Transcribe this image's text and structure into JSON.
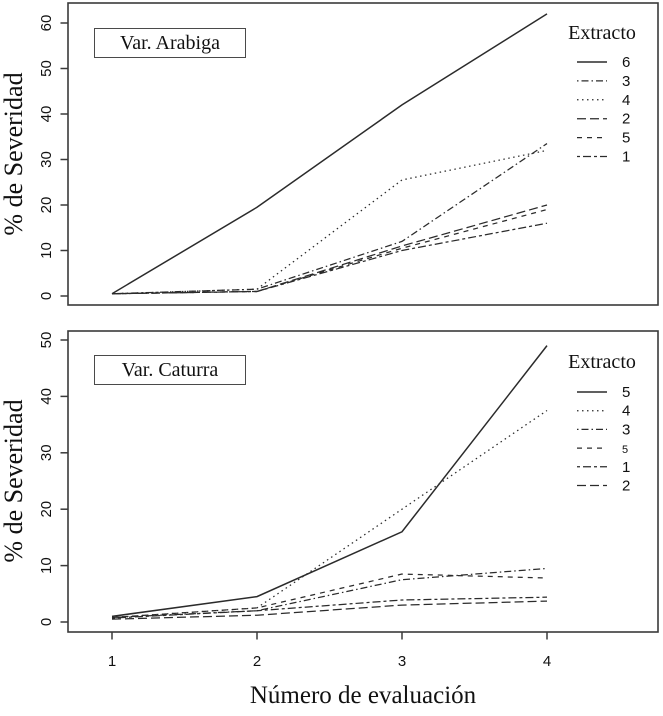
{
  "axes": {
    "x_label": "Número de evaluación",
    "y_label": "% de Severidad",
    "x_tick_labels": [
      "1",
      "2",
      "3",
      "4"
    ]
  },
  "colors": {
    "line": "#2b2b2b",
    "frame": "#3a3a3a",
    "text": "#111111"
  },
  "chart_data": [
    {
      "type": "line",
      "variety": "Var. Arabiga",
      "legend_title": "Extracto",
      "legend_position": "top-right",
      "x": [
        1,
        2,
        3,
        4
      ],
      "xlabel": "Número de evaluación",
      "ylabel": "% de Severidad",
      "ylim": [
        0,
        63
      ],
      "y_ticks": [
        "0",
        "10",
        "20",
        "30",
        "40",
        "50",
        "60"
      ],
      "grid": false,
      "series": [
        {
          "label": "6",
          "linetype": "solid",
          "values": [
            0.5,
            19.5,
            42,
            62
          ]
        },
        {
          "label": "3",
          "linetype": "dotdash",
          "values": [
            0.5,
            1.5,
            12,
            33.5
          ]
        },
        {
          "label": "4",
          "linetype": "dotted",
          "values": [
            0.5,
            1.5,
            25.5,
            32
          ]
        },
        {
          "label": "2",
          "linetype": "longdash",
          "values": [
            0.5,
            1,
            11,
            20
          ]
        },
        {
          "label": "5",
          "linetype": "dashed",
          "values": [
            0.5,
            1,
            10.5,
            19
          ]
        },
        {
          "label": "1",
          "linetype": "twodash",
          "values": [
            0.5,
            1,
            10,
            16
          ]
        }
      ]
    },
    {
      "type": "line",
      "variety": "Var. Caturra",
      "legend_title": "Extracto",
      "legend_position": "top-right",
      "x": [
        1,
        2,
        3,
        4
      ],
      "xlabel": "Número de evaluación",
      "ylabel": "% de Severidad",
      "ylim": [
        0,
        52
      ],
      "y_ticks": [
        "0",
        "10",
        "20",
        "30",
        "40",
        "50"
      ],
      "grid": false,
      "series": [
        {
          "label": "5",
          "linetype": "solid",
          "values": [
            1,
            4.5,
            16,
            49
          ]
        },
        {
          "label": "4",
          "linetype": "dotted",
          "values": [
            0.8,
            2.5,
            20,
            37.5
          ]
        },
        {
          "label": "3",
          "linetype": "dotdash",
          "values": [
            0.8,
            2,
            7.5,
            9.5
          ]
        },
        {
          "label": "5",
          "linetype": "dashed",
          "values": [
            0.8,
            2.5,
            8.5,
            7.8
          ],
          "small_label": true
        },
        {
          "label": "1",
          "linetype": "twodash",
          "values": [
            0.7,
            2,
            3.9,
            4.4
          ]
        },
        {
          "label": "2",
          "linetype": "longdash",
          "values": [
            0.5,
            1.2,
            3,
            3.7
          ]
        }
      ]
    }
  ]
}
